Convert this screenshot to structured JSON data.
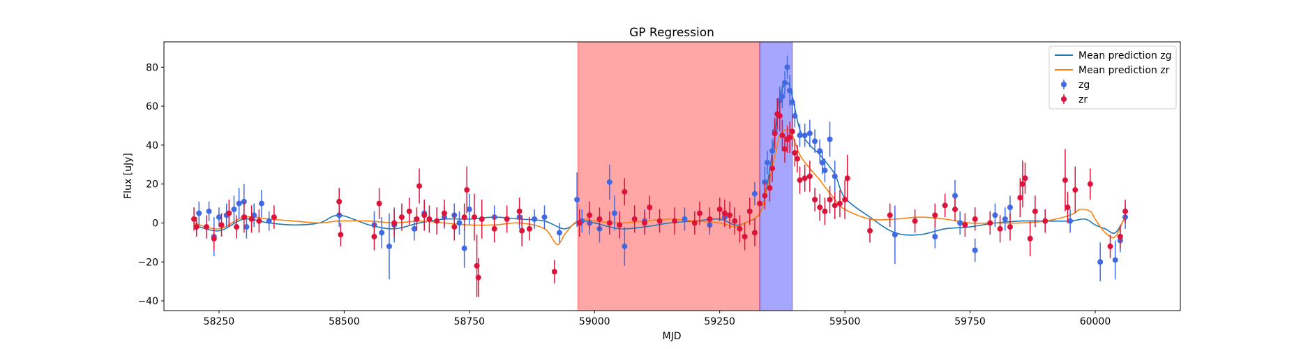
{
  "chart_data": {
    "type": "scatter",
    "title": "GP Regression",
    "xlabel": "MJD",
    "ylabel": "Flux [uJy]",
    "xlim": [
      58140,
      60170
    ],
    "ylim": [
      -45,
      93
    ],
    "xticks": [
      58250,
      58500,
      58750,
      59000,
      59250,
      59500,
      59750,
      60000
    ],
    "yticks": [
      -40,
      -20,
      0,
      20,
      40,
      60,
      80
    ],
    "grid": false,
    "legend_position": "top-right",
    "colors": {
      "zg": "#4169e1",
      "zr": "#dc143c",
      "mean_zg": "#1f77b4",
      "mean_zr": "#ff7f0e",
      "red_span": "#ff0000",
      "blue_span": "#0000ff"
    },
    "shaded_regions": [
      {
        "name": "red",
        "x": [
          58967,
          59330
        ],
        "color": "#ff0000",
        "alpha": 0.35
      },
      {
        "name": "blue",
        "x": [
          59330,
          59395
        ],
        "color": "#0000ff",
        "alpha": 0.35
      }
    ],
    "legend": [
      {
        "label": "Mean prediction zg",
        "kind": "line",
        "color": "#1f77b4"
      },
      {
        "label": "Mean prediction zr",
        "kind": "line",
        "color": "#ff7f0e"
      },
      {
        "label": "zg",
        "kind": "errorbar",
        "color": "#4169e1"
      },
      {
        "label": "zr",
        "kind": "errorbar",
        "color": "#dc143c"
      }
    ],
    "series": [
      {
        "name": "Mean prediction zg",
        "kind": "line",
        "color": "#1f77b4",
        "x": [
          58200,
          58250,
          58300,
          58350,
          58400,
          58450,
          58490,
          58550,
          58600,
          58650,
          58700,
          58750,
          58800,
          58850,
          58900,
          58940,
          58970,
          59000,
          59050,
          59100,
          59150,
          59200,
          59250,
          59280,
          59300,
          59330,
          59345,
          59360,
          59370,
          59385,
          59395,
          59410,
          59430,
          59450,
          59480,
          59500,
          59550,
          59600,
          59650,
          59700,
          59750,
          59800,
          59850,
          59900,
          59950,
          59980,
          60000,
          60020,
          60040,
          60060
        ],
        "y": [
          -1,
          -4,
          2,
          0,
          -1,
          0,
          4,
          -1,
          -3,
          0,
          2,
          2,
          3,
          2,
          1,
          -3,
          1,
          0,
          -3,
          -2,
          0,
          1,
          2,
          -1,
          0,
          5,
          20,
          45,
          65,
          72,
          65,
          48,
          40,
          35,
          25,
          13,
          3,
          -5,
          -6,
          -3,
          -2,
          0,
          1,
          1,
          1,
          2,
          -1,
          -3,
          -5,
          3
        ]
      },
      {
        "name": "Mean prediction zr",
        "kind": "line",
        "color": "#ff7f0e",
        "x": [
          58200,
          58250,
          58300,
          58350,
          58400,
          58450,
          58490,
          58550,
          58600,
          58650,
          58700,
          58750,
          58800,
          58850,
          58900,
          58925,
          58940,
          58960,
          58980,
          59000,
          59050,
          59100,
          59150,
          59200,
          59250,
          59280,
          59300,
          59330,
          59345,
          59360,
          59370,
          59385,
          59395,
          59410,
          59430,
          59450,
          59480,
          59500,
          59550,
          59600,
          59650,
          59700,
          59750,
          59800,
          59850,
          59900,
          59950,
          59970,
          59990,
          60000,
          60020,
          60040,
          60060
        ],
        "y": [
          0,
          -3,
          3,
          2,
          1,
          0,
          1,
          1,
          0,
          1,
          0,
          -1,
          -1,
          0,
          -3,
          -11,
          -6,
          0,
          2,
          1,
          0,
          1,
          2,
          1,
          0,
          -2,
          0,
          5,
          18,
          34,
          45,
          48,
          45,
          35,
          28,
          22,
          12,
          7,
          2,
          2,
          3,
          2,
          0,
          0,
          0,
          1,
          4,
          7,
          6,
          2,
          -5,
          -7,
          4
        ]
      },
      {
        "name": "zg",
        "kind": "errorbar",
        "color": "#4169e1",
        "x": [
          58210,
          58230,
          58240,
          58250,
          58265,
          58280,
          58290,
          58300,
          58305,
          58320,
          58335,
          58350,
          58490,
          58560,
          58575,
          58590,
          58600,
          58640,
          58660,
          58700,
          58720,
          58730,
          58740,
          58750,
          58800,
          58850,
          58880,
          58900,
          58930,
          58965,
          58975,
          58990,
          59010,
          59030,
          59040,
          59060,
          59100,
          59180,
          59230,
          59260,
          59320,
          59340,
          59345,
          59355,
          59360,
          59365,
          59370,
          59375,
          59380,
          59385,
          59390,
          59395,
          59400,
          59410,
          59420,
          59430,
          59440,
          59450,
          59455,
          59460,
          59470,
          59480,
          59600,
          59680,
          59720,
          59730,
          59760,
          59800,
          59820,
          59830,
          59900,
          59950,
          60010,
          60040,
          60050,
          60060
        ],
        "y": [
          5,
          6,
          -7,
          3,
          4,
          7,
          10,
          11,
          -2,
          4,
          10,
          1,
          4,
          -1,
          -5,
          -12,
          -1,
          -3,
          5,
          3,
          4,
          0,
          -13,
          7,
          3,
          3,
          2,
          3,
          -5,
          12,
          1,
          0,
          -3,
          21,
          5,
          -12,
          1,
          2,
          -1,
          3,
          15,
          21,
          31,
          37,
          47,
          56,
          63,
          65,
          72,
          80,
          68,
          62,
          55,
          45,
          45,
          46,
          42,
          37,
          31,
          27,
          43,
          24,
          -6,
          -7,
          14,
          0,
          -14,
          4,
          2,
          8,
          1,
          1,
          -20,
          -19,
          -9,
          3
        ],
        "err": [
          6,
          5,
          10,
          5,
          6,
          7,
          8,
          9,
          6,
          6,
          7,
          5,
          6,
          7,
          8,
          17,
          9,
          6,
          6,
          6,
          6,
          6,
          10,
          8,
          6,
          6,
          5,
          6,
          5,
          14,
          6,
          6,
          7,
          9,
          9,
          10,
          6,
          6,
          5,
          5,
          6,
          8,
          6,
          6,
          6,
          7,
          7,
          6,
          6,
          6,
          8,
          6,
          6,
          6,
          6,
          7,
          6,
          6,
          6,
          6,
          9,
          8,
          15,
          6,
          8,
          6,
          6,
          6,
          6,
          6,
          6,
          6,
          10,
          10,
          6,
          6
        ]
      },
      {
        "name": "zr",
        "kind": "errorbar",
        "color": "#dc143c",
        "x": [
          58200,
          58205,
          58225,
          58240,
          58255,
          58270,
          58285,
          58300,
          58315,
          58330,
          58360,
          58490,
          58493,
          58560,
          58570,
          58600,
          58615,
          58630,
          58645,
          58650,
          58660,
          58670,
          58685,
          58700,
          58720,
          58740,
          58745,
          58760,
          58765,
          58768,
          58775,
          58800,
          58825,
          58850,
          58855,
          58870,
          58920,
          58970,
          58990,
          59010,
          59030,
          59050,
          59060,
          59080,
          59100,
          59110,
          59130,
          59160,
          59200,
          59210,
          59230,
          59250,
          59260,
          59270,
          59280,
          59290,
          59300,
          59310,
          59320,
          59330,
          59340,
          59350,
          59355,
          59360,
          59365,
          59370,
          59375,
          59380,
          59385,
          59390,
          59395,
          59400,
          59405,
          59410,
          59420,
          59430,
          59440,
          59450,
          59460,
          59470,
          59480,
          59490,
          59500,
          59505,
          59550,
          59590,
          59640,
          59680,
          59700,
          59720,
          59740,
          59760,
          59790,
          59810,
          59830,
          59850,
          59855,
          59860,
          59870,
          59880,
          59900,
          59940,
          59945,
          59960,
          59990,
          60030,
          60050,
          60060
        ],
        "y": [
          2,
          -2,
          -2,
          -8,
          -1,
          5,
          -2,
          3,
          2,
          1,
          3,
          11,
          -6,
          -7,
          10,
          0,
          3,
          6,
          2,
          19,
          4,
          2,
          1,
          5,
          -2,
          3,
          17,
          3,
          -22,
          -28,
          2,
          -3,
          2,
          6,
          -4,
          -3,
          -25,
          0,
          4,
          2,
          0,
          -1,
          16,
          2,
          0,
          8,
          1,
          1,
          0,
          5,
          2,
          7,
          5,
          4,
          1,
          -3,
          -7,
          6,
          -5,
          10,
          14,
          18,
          28,
          46,
          56,
          55,
          45,
          38,
          43,
          44,
          47,
          36,
          33,
          22,
          23,
          24,
          12,
          8,
          6,
          12,
          9,
          10,
          12,
          23,
          -4,
          4,
          1,
          4,
          9,
          7,
          -1,
          2,
          0,
          -3,
          -2,
          13,
          20,
          23,
          -8,
          6,
          1,
          22,
          8,
          17,
          20,
          -12,
          -7,
          6
        ],
        "err": [
          6,
          5,
          6,
          6,
          6,
          7,
          6,
          8,
          7,
          6,
          6,
          7,
          6,
          7,
          8,
          7,
          7,
          7,
          6,
          9,
          8,
          7,
          7,
          7,
          7,
          7,
          12,
          12,
          16,
          10,
          10,
          7,
          7,
          7,
          8,
          6,
          6,
          7,
          7,
          6,
          6,
          7,
          7,
          7,
          6,
          6,
          6,
          7,
          6,
          6,
          6,
          6,
          7,
          7,
          7,
          7,
          7,
          7,
          7,
          7,
          7,
          7,
          7,
          8,
          8,
          8,
          8,
          7,
          7,
          8,
          8,
          7,
          7,
          7,
          7,
          8,
          6,
          7,
          7,
          7,
          7,
          7,
          10,
          12,
          6,
          6,
          6,
          6,
          6,
          6,
          6,
          6,
          6,
          7,
          7,
          10,
          12,
          8,
          9,
          8,
          6,
          16,
          8,
          12,
          8,
          6,
          6,
          6
        ]
      }
    ]
  }
}
